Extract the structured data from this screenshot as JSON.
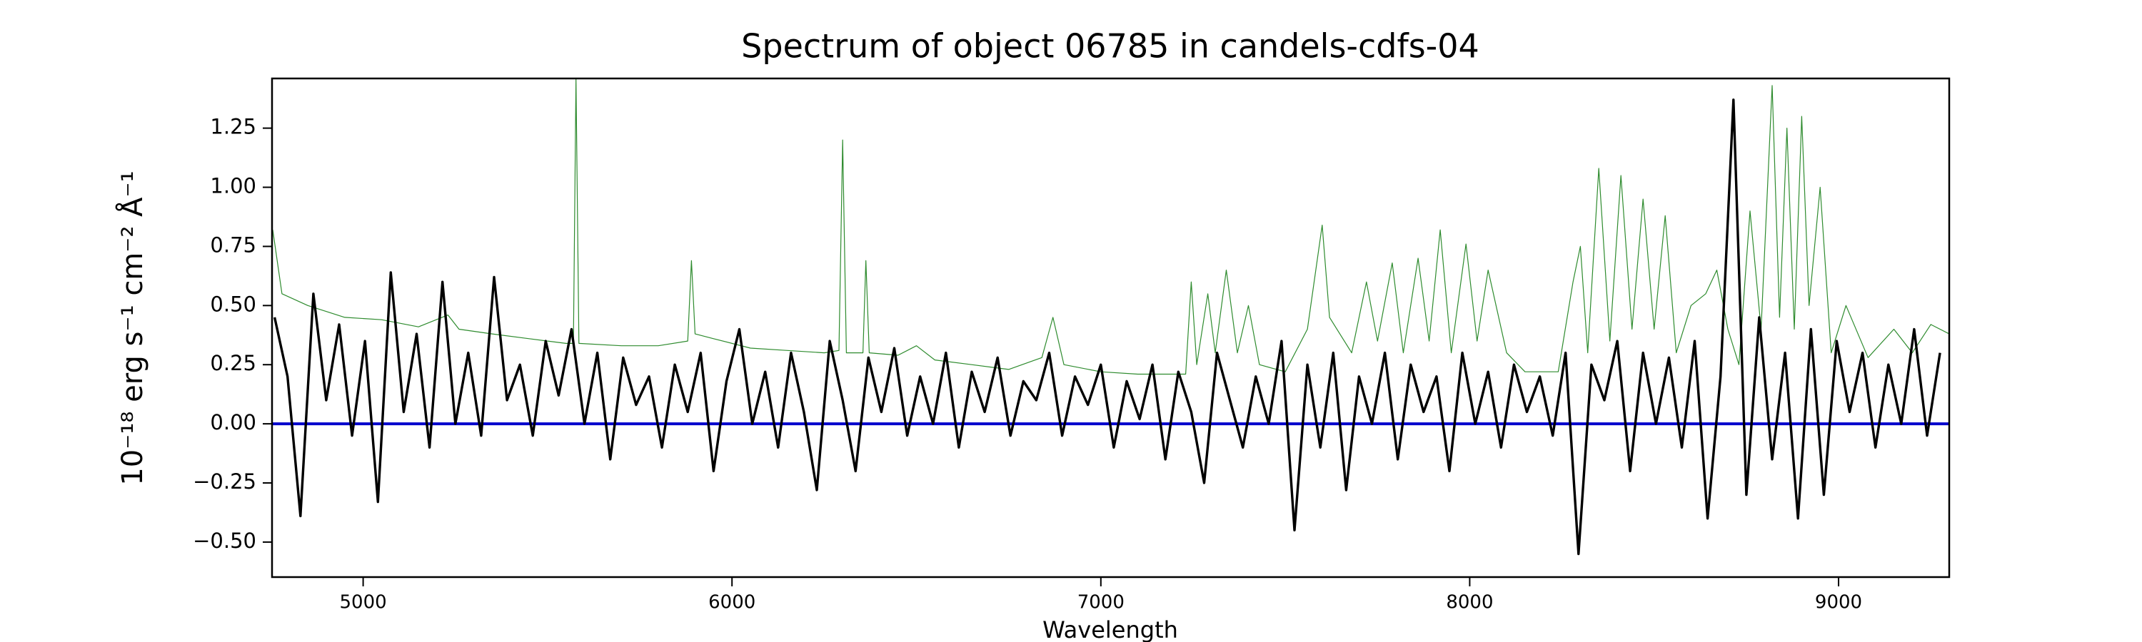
{
  "chart_data": {
    "type": "line",
    "title": "Spectrum of object 06785 in candels-cdfs-04",
    "x_label": "Wavelength",
    "y_label": "10⁻¹⁸ erg s⁻¹ cm⁻² Å⁻¹",
    "xlim": [
      4753,
      9300
    ],
    "ylim": [
      -0.648,
      1.46
    ],
    "xticks": [
      5000,
      6000,
      7000,
      8000,
      9000
    ],
    "yticks": [
      {
        "value": -0.5,
        "label": "−0.50"
      },
      {
        "value": -0.25,
        "label": "−0.25"
      },
      {
        "value": 0,
        "label": "0.00"
      },
      0.25,
      {
        "value": 0.5,
        "label": "0.50"
      },
      0.75,
      {
        "value": 1,
        "label": "1.00"
      },
      1.25
    ],
    "series": [
      {
        "color": "#2e8b2e",
        "width": 1.2,
        "x": [
          4755,
          4780,
          4850,
          4950,
          5050,
          5150,
          5230,
          5260,
          5350,
          5450,
          5550,
          5570,
          5577,
          5585,
          5700,
          5800,
          5880,
          5890,
          5900,
          5950,
          6050,
          6150,
          6250,
          6290,
          6300,
          6310,
          6355,
          6363,
          6372,
          6450,
          6500,
          6550,
          6650,
          6750,
          6840,
          6870,
          6900,
          7000,
          7100,
          7230,
          7245,
          7260,
          7290,
          7310,
          7340,
          7370,
          7400,
          7430,
          7500,
          7560,
          7600,
          7620,
          7680,
          7720,
          7750,
          7790,
          7820,
          7860,
          7890,
          7920,
          7950,
          7990,
          8020,
          8050,
          8100,
          8150,
          8240,
          8280,
          8300,
          8320,
          8350,
          8380,
          8410,
          8440,
          8470,
          8500,
          8530,
          8560,
          8600,
          8640,
          8670,
          8700,
          8730,
          8760,
          8790,
          8820,
          8840,
          8860,
          8880,
          8900,
          8920,
          8950,
          8980,
          9020,
          9080,
          9150,
          9200,
          9250,
          9300
        ],
        "values": [
          0.82,
          0.55,
          0.5,
          0.45,
          0.44,
          0.41,
          0.46,
          0.4,
          0.38,
          0.36,
          0.34,
          0.34,
          1.46,
          0.34,
          0.33,
          0.33,
          0.35,
          0.69,
          0.38,
          0.36,
          0.32,
          0.31,
          0.3,
          0.31,
          1.2,
          0.3,
          0.3,
          0.69,
          0.3,
          0.29,
          0.33,
          0.27,
          0.25,
          0.23,
          0.28,
          0.45,
          0.25,
          0.22,
          0.21,
          0.21,
          0.6,
          0.25,
          0.55,
          0.3,
          0.65,
          0.3,
          0.5,
          0.25,
          0.22,
          0.4,
          0.84,
          0.45,
          0.3,
          0.6,
          0.35,
          0.68,
          0.3,
          0.7,
          0.35,
          0.82,
          0.3,
          0.76,
          0.35,
          0.65,
          0.3,
          0.22,
          0.22,
          0.6,
          0.75,
          0.3,
          1.08,
          0.35,
          1.05,
          0.4,
          0.95,
          0.4,
          0.88,
          0.3,
          0.5,
          0.55,
          0.65,
          0.4,
          0.25,
          0.9,
          0.4,
          1.43,
          0.45,
          1.25,
          0.4,
          1.3,
          0.5,
          1.0,
          0.3,
          0.5,
          0.28,
          0.4,
          0.3,
          0.42,
          0.38
        ]
      },
      {
        "color": "#0000cc",
        "width": 4,
        "x": [
          4753,
          9300
        ],
        "values": [
          0,
          0
        ]
      },
      {
        "color": "#000000",
        "width": 3.4,
        "x": [
          4760,
          4795,
          4830,
          4865,
          4900,
          4935,
          4970,
          5005,
          5040,
          5075,
          5110,
          5145,
          5180,
          5215,
          5250,
          5285,
          5320,
          5355,
          5390,
          5425,
          5460,
          5495,
          5530,
          5565,
          5600,
          5635,
          5670,
          5705,
          5740,
          5775,
          5810,
          5845,
          5880,
          5915,
          5950,
          5985,
          6020,
          6055,
          6090,
          6125,
          6160,
          6195,
          6230,
          6265,
          6300,
          6335,
          6370,
          6405,
          6440,
          6475,
          6510,
          6545,
          6580,
          6615,
          6650,
          6685,
          6720,
          6755,
          6790,
          6825,
          6860,
          6895,
          6930,
          6965,
          7000,
          7035,
          7070,
          7105,
          7140,
          7175,
          7210,
          7245,
          7280,
          7315,
          7350,
          7385,
          7420,
          7455,
          7490,
          7525,
          7560,
          7595,
          7630,
          7665,
          7700,
          7735,
          7770,
          7805,
          7840,
          7875,
          7910,
          7945,
          7980,
          8015,
          8050,
          8085,
          8120,
          8155,
          8190,
          8225,
          8260,
          8295,
          8330,
          8365,
          8400,
          8435,
          8470,
          8505,
          8540,
          8575,
          8610,
          8645,
          8680,
          8715,
          8750,
          8785,
          8820,
          8855,
          8890,
          8925,
          8960,
          8995,
          9030,
          9065,
          9100,
          9135,
          9170,
          9205,
          9240,
          9275
        ],
        "values": [
          0.45,
          0.2,
          -0.39,
          0.55,
          0.1,
          0.42,
          -0.05,
          0.35,
          -0.33,
          0.64,
          0.05,
          0.38,
          -0.1,
          0.6,
          0.0,
          0.3,
          -0.05,
          0.62,
          0.1,
          0.25,
          -0.05,
          0.35,
          0.12,
          0.4,
          0.0,
          0.3,
          -0.15,
          0.28,
          0.08,
          0.2,
          -0.1,
          0.25,
          0.05,
          0.3,
          -0.2,
          0.18,
          0.4,
          0.0,
          0.22,
          -0.1,
          0.3,
          0.05,
          -0.28,
          0.35,
          0.1,
          -0.2,
          0.28,
          0.05,
          0.32,
          -0.05,
          0.2,
          0.0,
          0.3,
          -0.1,
          0.22,
          0.05,
          0.28,
          -0.05,
          0.18,
          0.1,
          0.3,
          -0.05,
          0.2,
          0.08,
          0.25,
          -0.1,
          0.18,
          0.02,
          0.25,
          -0.15,
          0.22,
          0.05,
          -0.25,
          0.3,
          0.1,
          -0.1,
          0.2,
          0.0,
          0.35,
          -0.45,
          0.25,
          -0.1,
          0.3,
          -0.28,
          0.2,
          0.0,
          0.3,
          -0.15,
          0.25,
          0.05,
          0.2,
          -0.2,
          0.3,
          0.0,
          0.22,
          -0.1,
          0.25,
          0.05,
          0.2,
          -0.05,
          0.3,
          -0.55,
          0.25,
          0.1,
          0.35,
          -0.2,
          0.3,
          0.0,
          0.28,
          -0.1,
          0.35,
          -0.4,
          0.2,
          1.37,
          -0.3,
          0.45,
          -0.15,
          0.3,
          -0.4,
          0.4,
          -0.3,
          0.35,
          0.05,
          0.3,
          -0.1,
          0.25,
          0.0,
          0.4,
          -0.05,
          0.3
        ]
      }
    ]
  }
}
